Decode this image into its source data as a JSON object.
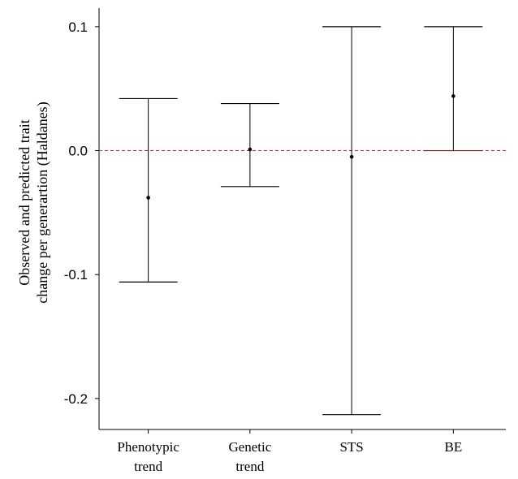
{
  "chart_data": {
    "type": "errorbar",
    "ylabel": [
      "Observed and predicted trait",
      "change per generartion (Haldanes)"
    ],
    "yticks": [
      0.1,
      0.0,
      -0.1,
      -0.2
    ],
    "ytick_labels": [
      "0.1",
      "0.0",
      "-0.1",
      "-0.2"
    ],
    "ylim": [
      -0.225,
      0.115
    ],
    "categories": [
      [
        "Phenotypic",
        "trend"
      ],
      [
        "Genetic",
        "trend"
      ],
      [
        "STS"
      ],
      [
        "BE"
      ]
    ],
    "points": [
      {
        "estimate": -0.038,
        "lower": -0.106,
        "upper": 0.042
      },
      {
        "estimate": 0.001,
        "lower": -0.029,
        "upper": 0.038
      },
      {
        "estimate": -0.005,
        "lower": -0.213,
        "upper": 0.1
      },
      {
        "estimate": 0.044,
        "lower": 0.0,
        "upper": 0.1
      }
    ],
    "reference_line": {
      "y": 0.0,
      "style": "dashed",
      "color": "#d62728"
    },
    "grid": false,
    "legend": "none"
  }
}
